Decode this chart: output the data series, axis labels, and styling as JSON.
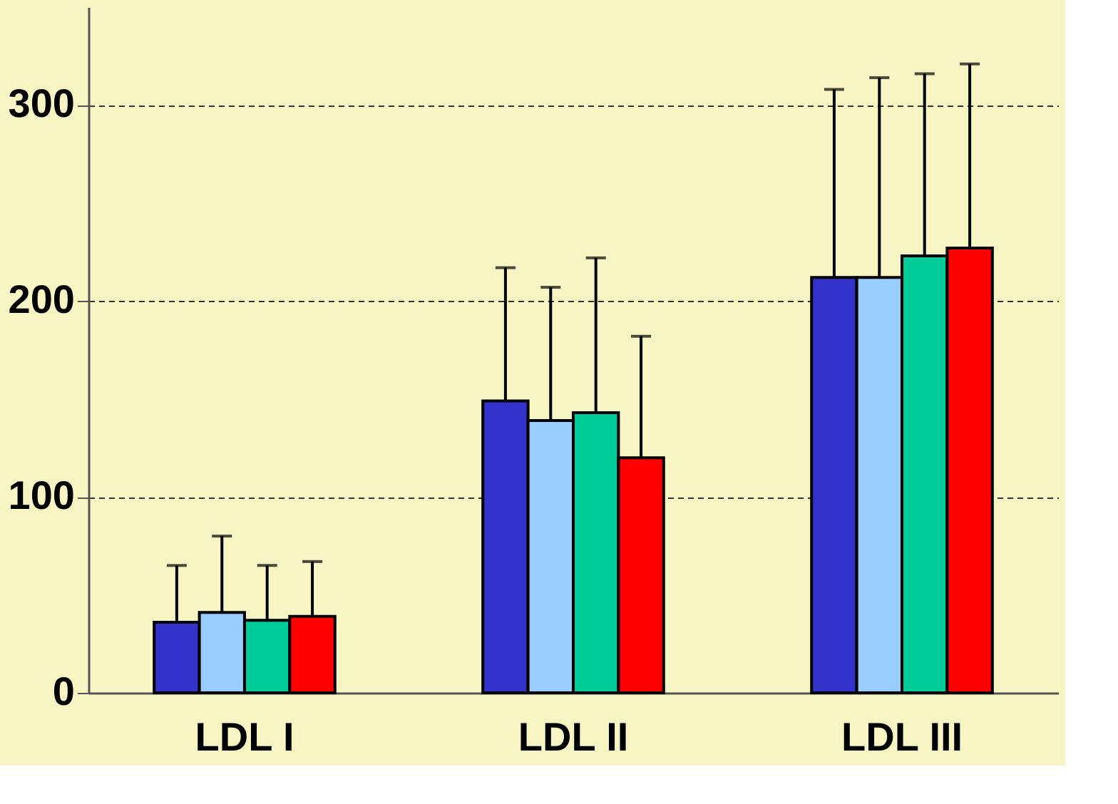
{
  "chart_data": {
    "type": "bar",
    "categories": [
      "LDL I",
      "LDL II",
      "LDL III"
    ],
    "series": [
      {
        "color": "#3333cc",
        "values": [
          36,
          149,
          212
        ],
        "errors": [
          [
            36,
            65
          ],
          [
            149,
            217
          ],
          [
            212,
            308
          ]
        ]
      },
      {
        "color": "#99ccff",
        "values": [
          41,
          139,
          212
        ],
        "errors": [
          [
            41,
            80
          ],
          [
            139,
            207
          ],
          [
            212,
            314
          ]
        ]
      },
      {
        "color": "#00cc99",
        "values": [
          37,
          143,
          223
        ],
        "errors": [
          [
            37,
            65
          ],
          [
            143,
            222
          ],
          [
            223,
            316
          ]
        ]
      },
      {
        "color": "#ff0000",
        "values": [
          39,
          120,
          227
        ],
        "errors": [
          [
            39,
            67
          ],
          [
            120,
            182
          ],
          [
            227,
            321
          ]
        ]
      }
    ],
    "ylim": [
      0,
      350
    ],
    "yticks": [
      0,
      100,
      200,
      300
    ],
    "grid": "y",
    "legend": false
  }
}
